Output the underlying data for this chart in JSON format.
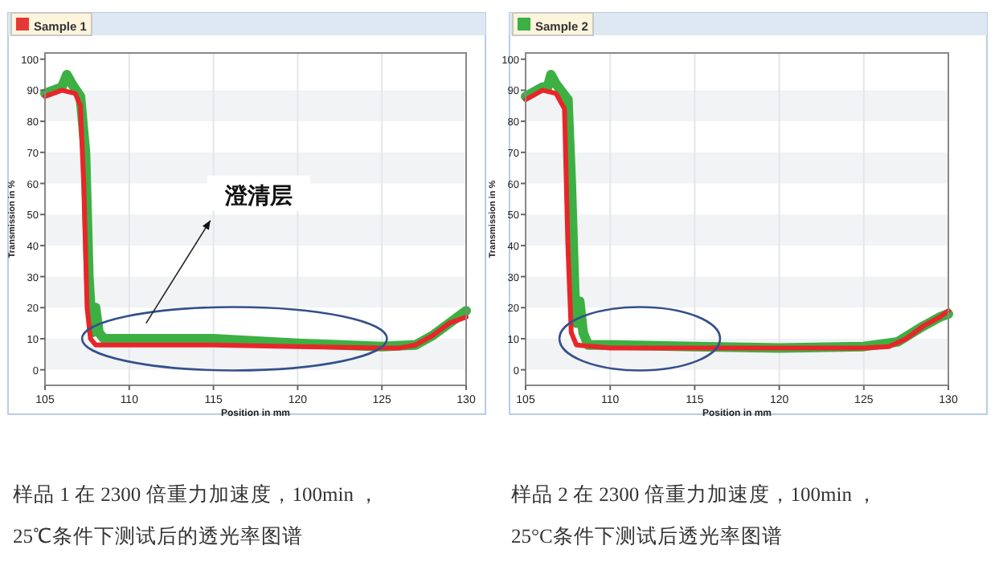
{
  "chart_data": [
    {
      "type": "line",
      "title": "Sample 1",
      "xlabel": "Position in mm",
      "ylabel": "Transmission in %",
      "xlim": [
        105,
        130
      ],
      "xticks": [
        105,
        110,
        115,
        120,
        125,
        130
      ],
      "ylim": [
        -5,
        102
      ],
      "yticks": [
        0,
        10,
        20,
        30,
        40,
        50,
        60,
        70,
        80,
        90,
        100
      ],
      "grid": true,
      "series": [
        {
          "color": "#3cb043",
          "x": [
            105,
            106,
            106.3,
            106.6,
            107.1,
            107.4,
            107.6,
            107.8,
            108,
            108.2,
            108.5,
            110,
            115,
            120,
            125,
            127,
            128,
            129,
            130
          ],
          "values": [
            89,
            91,
            95,
            92,
            88,
            70,
            30,
            12,
            20,
            12,
            10,
            10,
            10,
            8.5,
            7.5,
            8,
            11,
            15,
            19
          ]
        },
        {
          "color": "#e8262a",
          "x": [
            105,
            106,
            106.8,
            107.1,
            107.3,
            107.5,
            107.7,
            108,
            110,
            115,
            120,
            125,
            126,
            127,
            128,
            129,
            130
          ],
          "values": [
            88,
            90,
            89,
            85,
            60,
            20,
            10,
            8,
            8,
            8,
            7.5,
            7,
            7,
            8,
            11,
            15,
            17
          ]
        }
      ],
      "annotations": [
        "澄清层",
        "样品 1 在 2300 倍重力加速度，100min ，",
        "25℃条件下测试后的透光率图谱"
      ]
    },
    {
      "type": "line",
      "title": "Sample 2",
      "xlabel": "Position in mm",
      "ylabel": "Transmission in %",
      "xlim": [
        105,
        130
      ],
      "xticks": [
        105,
        110,
        115,
        120,
        125,
        130
      ],
      "ylim": [
        -5,
        102
      ],
      "yticks": [
        0,
        10,
        20,
        30,
        40,
        50,
        60,
        70,
        80,
        90,
        100
      ],
      "grid": true,
      "series": [
        {
          "color": "#3cb043",
          "x": [
            105,
            106,
            106.3,
            106.5,
            106.8,
            107.5,
            107.7,
            107.9,
            108,
            108.2,
            108.4,
            108.7,
            110,
            115,
            120,
            125,
            127,
            128.5,
            129.5,
            130
          ],
          "values": [
            88,
            91,
            91,
            95,
            92,
            87,
            60,
            25,
            15,
            22,
            12,
            8,
            8,
            7.5,
            7,
            7.5,
            9,
            14,
            17,
            18
          ]
        },
        {
          "color": "#e8262a",
          "x": [
            105,
            106,
            106.8,
            107.3,
            107.5,
            107.7,
            108,
            110,
            115,
            120,
            125,
            126.5,
            127.5,
            128.5,
            129.5,
            130
          ],
          "values": [
            87,
            90,
            89,
            84,
            40,
            12,
            8,
            7,
            7,
            7,
            7,
            7.5,
            10,
            14,
            17,
            19
          ]
        }
      ],
      "annotations": [
        "样品 2 在 2300 倍重力加速度，100min ，",
        "25°C条件下测试后透光率图谱"
      ]
    }
  ]
}
